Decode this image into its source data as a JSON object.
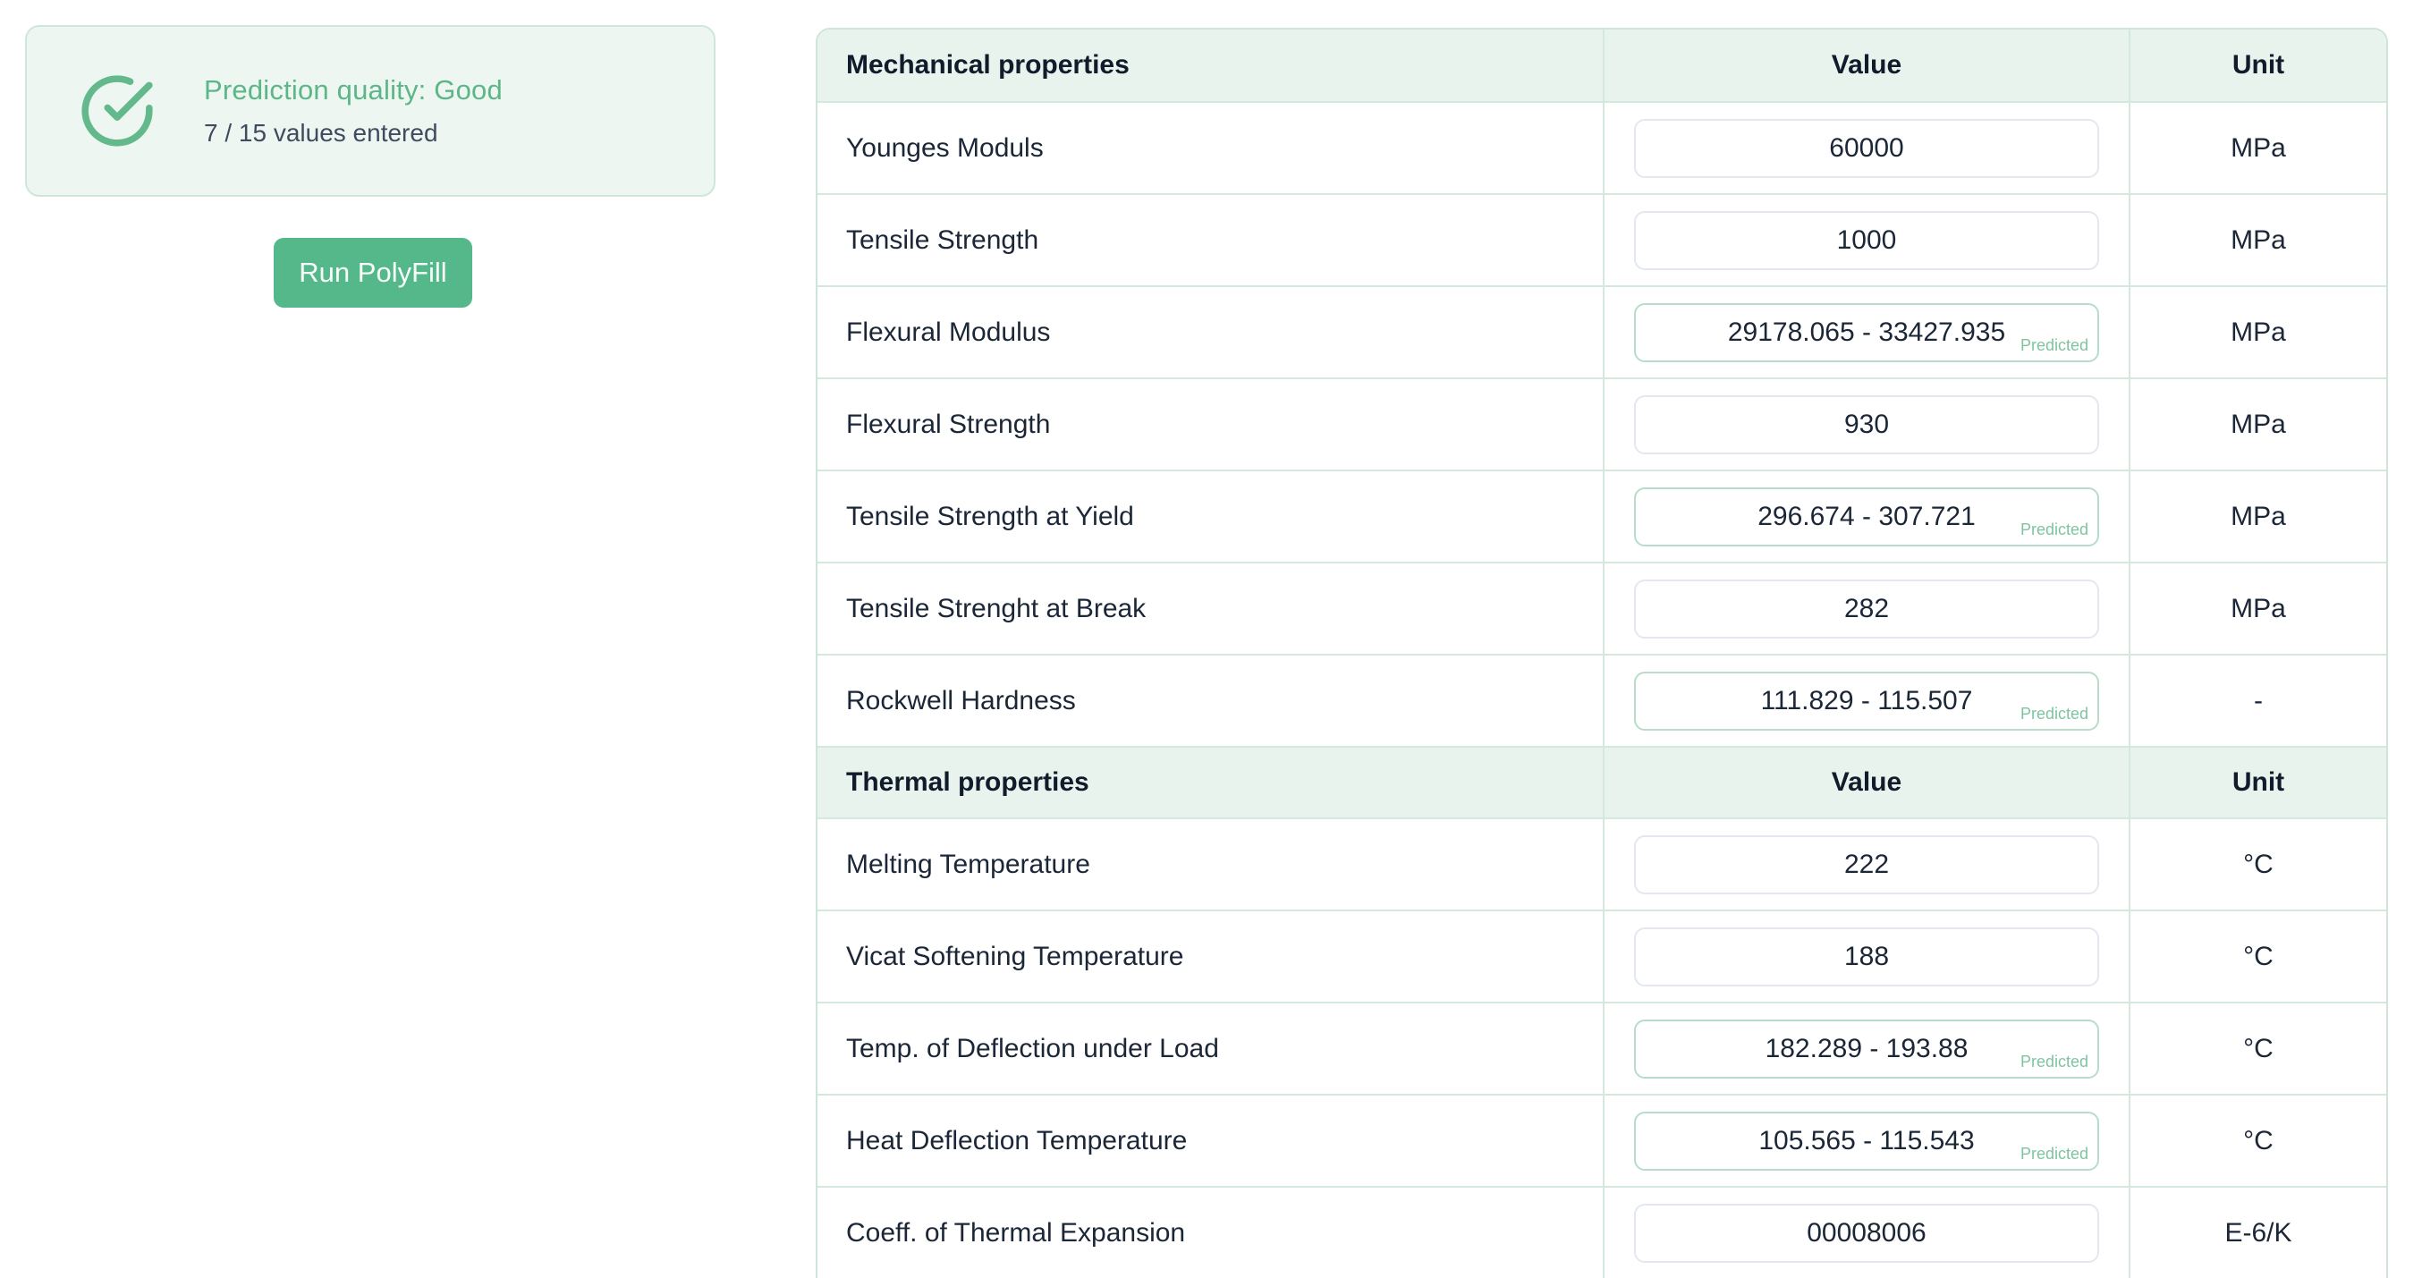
{
  "status_card": {
    "icon": "check-circle-icon",
    "title": "Prediction quality: Good",
    "subtitle": "7 / 15 values entered"
  },
  "run_button": {
    "label": "Run PolyFill"
  },
  "table": {
    "predicted_label": "Predicted",
    "sections": [
      {
        "header": {
          "name": "Mechanical properties",
          "value_label": "Value",
          "unit_label": "Unit"
        },
        "rows": [
          {
            "label": "Younges Moduls",
            "value": "60000",
            "unit": "MPa",
            "predicted": false
          },
          {
            "label": "Tensile Strength",
            "value": "1000",
            "unit": "MPa",
            "predicted": false
          },
          {
            "label": "Flexural Modulus",
            "value": "29178.065 - 33427.935",
            "unit": "MPa",
            "predicted": true
          },
          {
            "label": "Flexural Strength",
            "value": "930",
            "unit": "MPa",
            "predicted": false
          },
          {
            "label": "Tensile Strength at Yield",
            "value": "296.674 - 307.721",
            "unit": "MPa",
            "predicted": true
          },
          {
            "label": "Tensile Strenght at Break",
            "value": "282",
            "unit": "MPa",
            "predicted": false
          },
          {
            "label": "Rockwell Hardness",
            "value": "111.829 - 115.507",
            "unit": "-",
            "predicted": true
          }
        ]
      },
      {
        "header": {
          "name": "Thermal properties",
          "value_label": "Value",
          "unit_label": "Unit"
        },
        "rows": [
          {
            "label": "Melting Temperature",
            "value": "222",
            "unit": "°C",
            "predicted": false
          },
          {
            "label": "Vicat Softening Temperature",
            "value": "188",
            "unit": "°C",
            "predicted": false
          },
          {
            "label": "Temp. of Deflection under Load",
            "value": "182.289 - 193.88",
            "unit": "°C",
            "predicted": true
          },
          {
            "label": "Heat Deflection Temperature",
            "value": "105.565 - 115.543",
            "unit": "°C",
            "predicted": true
          },
          {
            "label": "Coeff. of Thermal Expansion",
            "value": "00008006",
            "unit": "E-6/K",
            "predicted": false
          }
        ]
      }
    ]
  },
  "colors": {
    "accent_green": "#55b88b",
    "title_green": "#5cb687",
    "predicted_green": "#7fc4a1",
    "predicted_border": "#b7dcc9",
    "header_bg": "#e9f3ee",
    "card_bg": "#eef6f1",
    "separator": "#d5e8dd",
    "input_border": "#e3e7f0",
    "dark_text": "#1b2637"
  }
}
